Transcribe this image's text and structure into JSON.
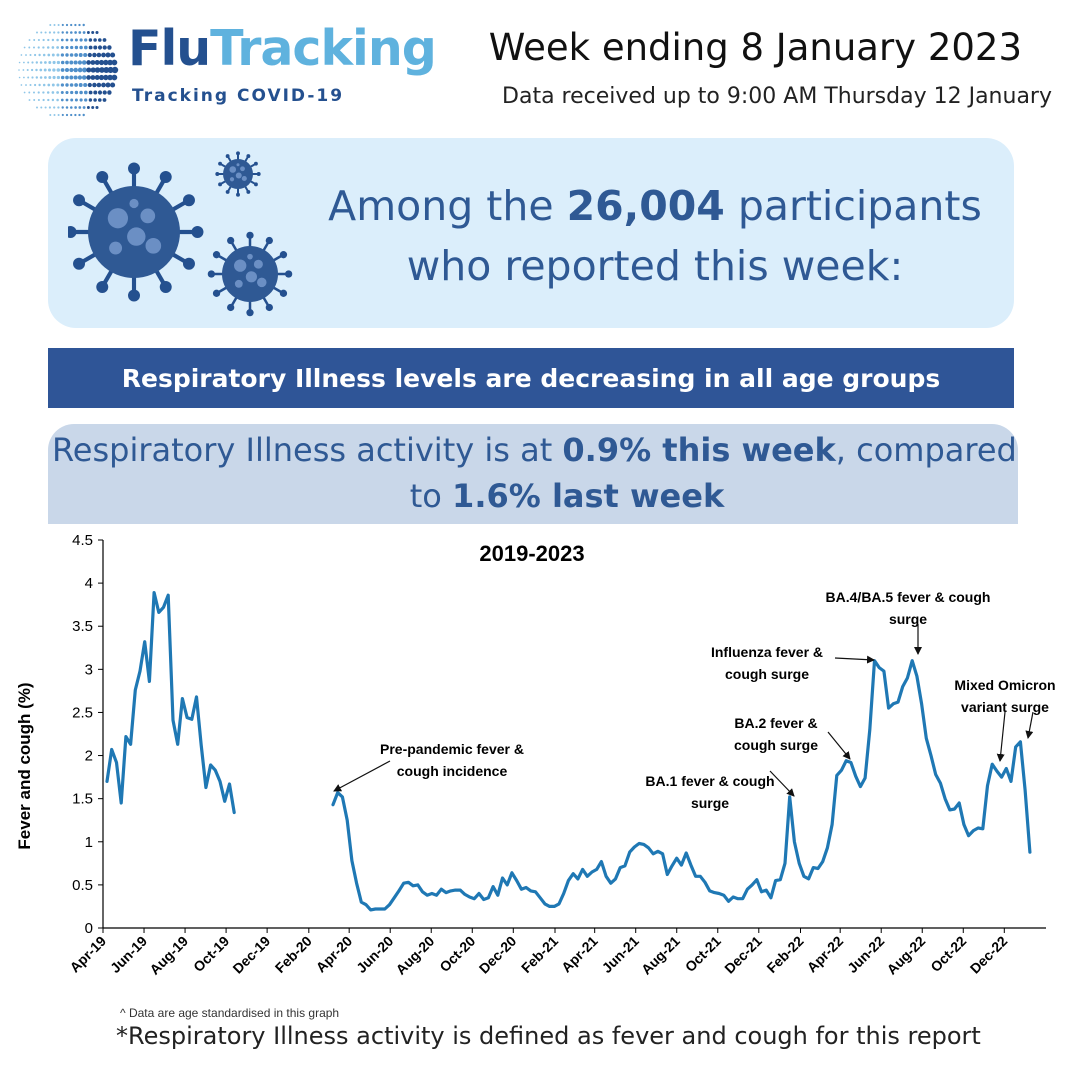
{
  "brand": {
    "name_part1": "Flu",
    "name_part2": "Tracking",
    "tagline": "Tracking COVID-19"
  },
  "header": {
    "week": "Week ending 8 January 2023",
    "received": "Data received up to 9:00 AM Thursday 12 January"
  },
  "participants": {
    "prefix": "Among the ",
    "count": "26,004",
    "suffix": " participants",
    "line2": "who reported this week:"
  },
  "banner": {
    "text": "Respiratory Illness levels are decreasing in all age groups"
  },
  "activity": {
    "prefix": "Respiratory Illness activity is at ",
    "this_week": "0.9% this week",
    "middle": ", compared",
    "to": "to ",
    "last_week": "1.6% last week"
  },
  "colors": {
    "brand_dark": "#24508f",
    "brand_light": "#5fb2de",
    "banner": "#2f5597",
    "line": "#1f78b4",
    "panel_light": "#dbeefb",
    "panel_grey": "#c9d7e9"
  },
  "icons": [
    "logo-globe-icon",
    "virus-icon"
  ],
  "footnotes": {
    "small": "^ Data are age standardised in this graph",
    "main": "*Respiratory Illness activity is defined as fever and cough for this report"
  },
  "chart_data": {
    "type": "line",
    "title": "2019-2023",
    "xlabel": "",
    "ylabel": "Fever and cough (%)",
    "ylim": [
      0,
      4.5
    ],
    "yticks": [
      "0",
      "0.5",
      "1",
      "1.5",
      "2",
      "2.5",
      "3",
      "3.5",
      "4",
      "4.5"
    ],
    "x_start": "2019-04-01",
    "x_end": "2023-02-01",
    "xticks": [
      {
        "label": "Apr-19",
        "date": "2019-04-01"
      },
      {
        "label": "Jun-19",
        "date": "2019-06-01"
      },
      {
        "label": "Aug-19",
        "date": "2019-08-01"
      },
      {
        "label": "Oct-19",
        "date": "2019-10-01"
      },
      {
        "label": "Dec-19",
        "date": "2019-12-01"
      },
      {
        "label": "Feb-20",
        "date": "2020-02-01"
      },
      {
        "label": "Apr-20",
        "date": "2020-04-01"
      },
      {
        "label": "Jun-20",
        "date": "2020-06-01"
      },
      {
        "label": "Aug-20",
        "date": "2020-08-01"
      },
      {
        "label": "Oct-20",
        "date": "2020-10-01"
      },
      {
        "label": "Dec-20",
        "date": "2020-12-01"
      },
      {
        "label": "Feb-21",
        "date": "2021-02-01"
      },
      {
        "label": "Apr-21",
        "date": "2021-04-01"
      },
      {
        "label": "Jun-21",
        "date": "2021-06-01"
      },
      {
        "label": "Aug-21",
        "date": "2021-08-01"
      },
      {
        "label": "Oct-21",
        "date": "2021-10-01"
      },
      {
        "label": "Dec-21",
        "date": "2021-12-01"
      },
      {
        "label": "Feb-22",
        "date": "2022-02-01"
      },
      {
        "label": "Apr-22",
        "date": "2022-04-01"
      },
      {
        "label": "Jun-22",
        "date": "2022-06-01"
      },
      {
        "label": "Aug-22",
        "date": "2022-08-01"
      },
      {
        "label": "Oct-22",
        "date": "2022-10-01"
      },
      {
        "label": "Dec-22",
        "date": "2022-12-01"
      }
    ],
    "series": [
      {
        "segments": [
          [
            [
              "2019-04-07",
              1.7
            ],
            [
              "2019-04-14",
              2.07
            ],
            [
              "2019-04-21",
              1.92
            ],
            [
              "2019-04-28",
              1.45
            ],
            [
              "2019-05-05",
              2.22
            ],
            [
              "2019-05-12",
              2.13
            ],
            [
              "2019-05-19",
              2.76
            ],
            [
              "2019-05-26",
              2.98
            ],
            [
              "2019-06-02",
              3.32
            ],
            [
              "2019-06-09",
              2.86
            ],
            [
              "2019-06-16",
              3.89
            ],
            [
              "2019-06-23",
              3.66
            ],
            [
              "2019-06-30",
              3.72
            ],
            [
              "2019-07-07",
              3.86
            ],
            [
              "2019-07-14",
              2.41
            ],
            [
              "2019-07-21",
              2.13
            ],
            [
              "2019-07-28",
              2.66
            ],
            [
              "2019-08-04",
              2.44
            ],
            [
              "2019-08-11",
              2.42
            ],
            [
              "2019-08-18",
              2.68
            ],
            [
              "2019-08-25",
              2.12
            ],
            [
              "2019-09-01",
              1.63
            ],
            [
              "2019-09-08",
              1.89
            ],
            [
              "2019-09-15",
              1.83
            ],
            [
              "2019-09-22",
              1.7
            ],
            [
              "2019-09-29",
              1.47
            ],
            [
              "2019-10-06",
              1.67
            ],
            [
              "2019-10-13",
              1.34
            ]
          ],
          [
            [
              "2020-03-08",
              1.43
            ],
            [
              "2020-03-15",
              1.57
            ],
            [
              "2020-03-22",
              1.52
            ],
            [
              "2020-03-29",
              1.25
            ],
            [
              "2020-04-05",
              0.78
            ],
            [
              "2020-04-12",
              0.52
            ],
            [
              "2020-04-19",
              0.3
            ],
            [
              "2020-04-26",
              0.27
            ],
            [
              "2020-05-03",
              0.21
            ],
            [
              "2020-05-10",
              0.22
            ],
            [
              "2020-05-17",
              0.22
            ],
            [
              "2020-05-24",
              0.22
            ],
            [
              "2020-05-31",
              0.27
            ],
            [
              "2020-06-07",
              0.35
            ],
            [
              "2020-06-14",
              0.43
            ],
            [
              "2020-06-21",
              0.52
            ],
            [
              "2020-06-28",
              0.53
            ],
            [
              "2020-07-05",
              0.49
            ],
            [
              "2020-07-12",
              0.5
            ],
            [
              "2020-07-19",
              0.42
            ],
            [
              "2020-07-26",
              0.38
            ],
            [
              "2020-08-02",
              0.4
            ],
            [
              "2020-08-09",
              0.38
            ],
            [
              "2020-08-16",
              0.45
            ],
            [
              "2020-08-23",
              0.41
            ],
            [
              "2020-08-30",
              0.43
            ],
            [
              "2020-09-06",
              0.44
            ],
            [
              "2020-09-13",
              0.44
            ],
            [
              "2020-09-20",
              0.39
            ],
            [
              "2020-09-27",
              0.36
            ],
            [
              "2020-10-04",
              0.34
            ],
            [
              "2020-10-11",
              0.4
            ],
            [
              "2020-10-18",
              0.33
            ],
            [
              "2020-10-25",
              0.35
            ],
            [
              "2020-11-01",
              0.48
            ],
            [
              "2020-11-08",
              0.38
            ],
            [
              "2020-11-15",
              0.58
            ],
            [
              "2020-11-22",
              0.5
            ],
            [
              "2020-11-29",
              0.64
            ],
            [
              "2020-12-06",
              0.55
            ],
            [
              "2020-12-13",
              0.45
            ],
            [
              "2020-12-20",
              0.47
            ],
            [
              "2020-12-27",
              0.43
            ],
            [
              "2021-01-03",
              0.42
            ],
            [
              "2021-01-10",
              0.35
            ],
            [
              "2021-01-17",
              0.28
            ],
            [
              "2021-01-24",
              0.25
            ],
            [
              "2021-01-31",
              0.25
            ],
            [
              "2021-02-07",
              0.28
            ],
            [
              "2021-02-14",
              0.4
            ],
            [
              "2021-02-21",
              0.55
            ],
            [
              "2021-02-28",
              0.63
            ],
            [
              "2021-03-07",
              0.57
            ],
            [
              "2021-03-14",
              0.68
            ],
            [
              "2021-03-21",
              0.6
            ],
            [
              "2021-03-28",
              0.65
            ],
            [
              "2021-04-04",
              0.68
            ],
            [
              "2021-04-11",
              0.77
            ],
            [
              "2021-04-18",
              0.6
            ],
            [
              "2021-04-25",
              0.52
            ],
            [
              "2021-05-02",
              0.57
            ],
            [
              "2021-05-09",
              0.7
            ],
            [
              "2021-05-16",
              0.72
            ],
            [
              "2021-05-23",
              0.88
            ],
            [
              "2021-05-30",
              0.94
            ],
            [
              "2021-06-06",
              0.98
            ],
            [
              "2021-06-13",
              0.97
            ],
            [
              "2021-06-20",
              0.93
            ],
            [
              "2021-06-27",
              0.86
            ],
            [
              "2021-07-04",
              0.89
            ],
            [
              "2021-07-11",
              0.86
            ],
            [
              "2021-07-18",
              0.62
            ],
            [
              "2021-07-25",
              0.72
            ],
            [
              "2021-08-01",
              0.81
            ],
            [
              "2021-08-08",
              0.73
            ],
            [
              "2021-08-15",
              0.87
            ],
            [
              "2021-08-22",
              0.73
            ],
            [
              "2021-08-29",
              0.6
            ],
            [
              "2021-09-05",
              0.6
            ],
            [
              "2021-09-12",
              0.53
            ],
            [
              "2021-09-19",
              0.43
            ],
            [
              "2021-09-26",
              0.41
            ],
            [
              "2021-10-03",
              0.4
            ],
            [
              "2021-10-10",
              0.38
            ],
            [
              "2021-10-17",
              0.31
            ],
            [
              "2021-10-24",
              0.36
            ],
            [
              "2021-10-31",
              0.34
            ],
            [
              "2021-11-07",
              0.34
            ],
            [
              "2021-11-14",
              0.45
            ],
            [
              "2021-11-21",
              0.5
            ],
            [
              "2021-11-28",
              0.56
            ],
            [
              "2021-12-05",
              0.42
            ],
            [
              "2021-12-12",
              0.44
            ],
            [
              "2021-12-19",
              0.35
            ],
            [
              "2021-12-26",
              0.55
            ],
            [
              "2022-01-02",
              0.56
            ],
            [
              "2022-01-09",
              0.75
            ],
            [
              "2022-01-16",
              1.52
            ],
            [
              "2022-01-23",
              1.0
            ],
            [
              "2022-01-30",
              0.75
            ],
            [
              "2022-02-06",
              0.6
            ],
            [
              "2022-02-13",
              0.57
            ],
            [
              "2022-02-20",
              0.7
            ],
            [
              "2022-02-27",
              0.69
            ],
            [
              "2022-03-06",
              0.77
            ],
            [
              "2022-03-13",
              0.93
            ],
            [
              "2022-03-20",
              1.2
            ],
            [
              "2022-03-27",
              1.77
            ],
            [
              "2022-04-03",
              1.83
            ],
            [
              "2022-04-10",
              1.94
            ],
            [
              "2022-04-17",
              1.92
            ],
            [
              "2022-04-24",
              1.76
            ],
            [
              "2022-05-01",
              1.64
            ],
            [
              "2022-05-08",
              1.74
            ],
            [
              "2022-05-15",
              2.3
            ],
            [
              "2022-05-22",
              3.1
            ],
            [
              "2022-05-29",
              3.02
            ],
            [
              "2022-06-05",
              2.98
            ],
            [
              "2022-06-12",
              2.55
            ],
            [
              "2022-06-19",
              2.6
            ],
            [
              "2022-06-26",
              2.62
            ],
            [
              "2022-07-03",
              2.8
            ],
            [
              "2022-07-10",
              2.9
            ],
            [
              "2022-07-17",
              3.1
            ],
            [
              "2022-07-24",
              2.92
            ],
            [
              "2022-07-31",
              2.6
            ],
            [
              "2022-08-07",
              2.2
            ],
            [
              "2022-08-14",
              2.0
            ],
            [
              "2022-08-21",
              1.78
            ],
            [
              "2022-08-28",
              1.68
            ],
            [
              "2022-09-04",
              1.5
            ],
            [
              "2022-09-11",
              1.37
            ],
            [
              "2022-09-18",
              1.38
            ],
            [
              "2022-09-25",
              1.45
            ],
            [
              "2022-10-02",
              1.2
            ],
            [
              "2022-10-09",
              1.07
            ],
            [
              "2022-10-16",
              1.13
            ],
            [
              "2022-10-23",
              1.16
            ],
            [
              "2022-10-30",
              1.15
            ],
            [
              "2022-11-06",
              1.65
            ],
            [
              "2022-11-13",
              1.9
            ],
            [
              "2022-11-20",
              1.82
            ],
            [
              "2022-11-27",
              1.75
            ],
            [
              "2022-12-04",
              1.85
            ],
            [
              "2022-12-11",
              1.7
            ],
            [
              "2022-12-18",
              2.1
            ],
            [
              "2022-12-25",
              2.16
            ],
            [
              "2023-01-01",
              1.6
            ],
            [
              "2023-01-08",
              0.88
            ]
          ]
        ]
      }
    ],
    "annotations": [
      {
        "text": [
          "Pre-pandemic fever &",
          "cough incidence"
        ],
        "point": [
          "2020-03-15",
          1.57
        ]
      },
      {
        "text": [
          "BA.1 fever & cough",
          "surge"
        ],
        "point": [
          "2022-01-16",
          1.52
        ]
      },
      {
        "text": [
          "BA.2 fever &",
          "cough surge"
        ],
        "point": [
          "2022-04-10",
          1.94
        ]
      },
      {
        "text": [
          "Influenza fever &",
          "cough surge"
        ],
        "point": [
          "2022-05-22",
          3.1
        ]
      },
      {
        "text": [
          "BA.4/BA.5 fever & cough",
          "surge"
        ],
        "point": [
          "2022-07-17",
          3.1
        ]
      },
      {
        "text": [
          "Mixed Omicron",
          "variant surge"
        ],
        "point": [
          "2022-11-13",
          1.9
        ]
      },
      {
        "text": [
          "",
          ""
        ],
        "point": [
          "2022-12-25",
          2.16
        ]
      }
    ],
    "grid": false,
    "legend": "none"
  }
}
